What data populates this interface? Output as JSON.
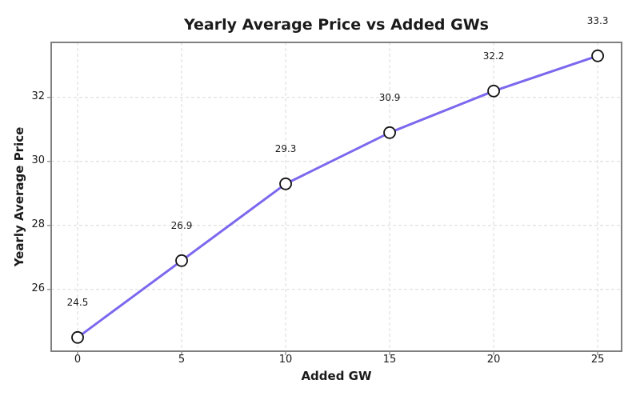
{
  "chart_data": {
    "type": "line",
    "title": "Yearly Average Price vs Added GWs",
    "xlabel": "Added GW",
    "ylabel": "Yearly Average Price",
    "x": [
      0,
      5,
      10,
      15,
      20,
      25
    ],
    "y": [
      24.5,
      26.9,
      29.3,
      30.9,
      32.2,
      33.3
    ],
    "point_labels": [
      "24.5",
      "26.9",
      "29.3",
      "30.9",
      "32.2",
      "33.3"
    ],
    "xticks": [
      0,
      5,
      10,
      15,
      20,
      25
    ],
    "yticks": [
      26,
      28,
      30,
      32
    ],
    "xlim": [
      -1.27,
      26.15
    ],
    "ylim": [
      24.07,
      33.72
    ],
    "grid": true,
    "legend": false,
    "colors": {
      "line": "#7b68ee",
      "marker_face": "#ffffff",
      "marker_edge": "#111111",
      "spine": "#808080",
      "grid": "#d9d9d9",
      "tick_mark": "#808080",
      "text": "#1a1a1a",
      "background": "#ffffff"
    }
  }
}
